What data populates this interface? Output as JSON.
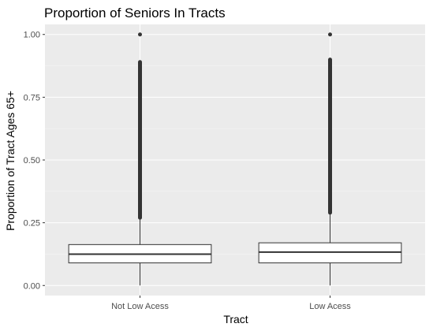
{
  "chart_data": {
    "type": "box",
    "title": "Proportion of Seniors In Tracts",
    "xlabel": "Tract",
    "ylabel": "Proportion of Tract Ages 65+",
    "ylim": [
      -0.04,
      1.04
    ],
    "yticks": [
      0.0,
      0.25,
      0.5,
      0.75,
      1.0
    ],
    "ytick_labels": [
      "0.00",
      "0.25",
      "0.50",
      "0.75",
      "1.00"
    ],
    "categories": [
      "Not Low Acess",
      "Low Acess"
    ],
    "boxes": [
      {
        "category": "Not Low Acess",
        "min": 0.0,
        "q1": 0.09,
        "median": 0.125,
        "q3": 0.163,
        "whisker_high": 0.27,
        "outliers_low": 0.27,
        "outliers_high": 0.89,
        "max_outlier": 1.0
      },
      {
        "category": "Low Acess",
        "min": 0.0,
        "q1": 0.09,
        "median": 0.133,
        "q3": 0.17,
        "whisker_high": 0.29,
        "outliers_low": 0.29,
        "outliers_high": 0.9,
        "max_outlier": 1.0
      }
    ],
    "grid": true,
    "legend": "none",
    "colors": {
      "panel": "#ebebeb",
      "grid_major": "#ffffff",
      "grid_minor": "#f5f5f5",
      "box_fill": "#ffffff",
      "box_line": "#333333",
      "outlier": "#333333"
    }
  }
}
